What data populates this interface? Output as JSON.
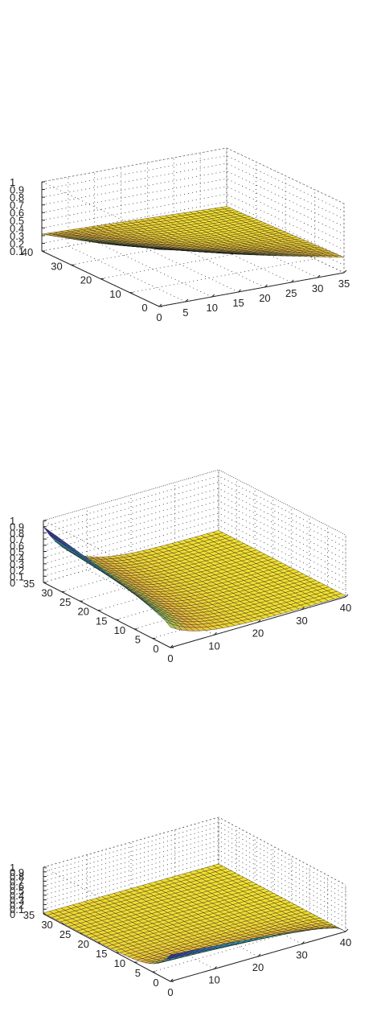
{
  "chart_data": [
    {
      "type": "surface3d",
      "title": "",
      "xlabel": "",
      "ylabel": "",
      "zlabel": "",
      "x_ticks": [
        "0",
        "5",
        "10",
        "15",
        "20",
        "25",
        "30",
        "35"
      ],
      "y_ticks": [
        "0",
        "10",
        "20",
        "30",
        "40"
      ],
      "z_ticks": [
        "0.1",
        "0.2",
        "0.3",
        "0.4",
        "0.5",
        "0.6",
        "0.7",
        "0.8",
        "0.9",
        "1"
      ],
      "xlim": [
        0,
        35
      ],
      "ylim": [
        0,
        40
      ],
      "zlim": [
        0.1,
        1
      ],
      "grid": true,
      "colormap": [
        "#3b2f8f",
        "#2a8fb8",
        "#48b59a",
        "#a7c45a",
        "#e6b43e",
        "#f2e030"
      ],
      "corner_values": {
        "x0_y40": 0.32,
        "x0_y0": 0.79,
        "x35_y0": 0.3,
        "x35_y40": 0.24
      }
    },
    {
      "type": "surface3d",
      "title": "",
      "xlabel": "",
      "ylabel": "",
      "zlabel": "",
      "x_ticks": [
        "0",
        "10",
        "20",
        "30",
        "40"
      ],
      "y_ticks": [
        "0",
        "5",
        "10",
        "15",
        "20",
        "25",
        "30",
        "35"
      ],
      "z_ticks": [
        "0",
        "0.1",
        "0.2",
        "0.3",
        "0.4",
        "0.5",
        "0.6",
        "0.7",
        "0.8",
        "0.9",
        "1"
      ],
      "xlim": [
        0,
        40
      ],
      "ylim": [
        0,
        35
      ],
      "zlim": [
        0,
        1
      ],
      "grid": true,
      "colormap": [
        "#3b2f8f",
        "#2a8fb8",
        "#48b59a",
        "#a7c45a",
        "#e6b43e",
        "#f2e030"
      ],
      "peak_value": 0.88,
      "floor_value": 0.0
    },
    {
      "type": "surface3d",
      "title": "",
      "xlabel": "",
      "ylabel": "",
      "zlabel": "",
      "x_ticks": [
        "0",
        "10",
        "20",
        "30",
        "40"
      ],
      "y_ticks": [
        "0",
        "5",
        "10",
        "15",
        "20",
        "25",
        "30",
        "35"
      ],
      "z_ticks": [
        "0",
        "0.1",
        "0.2",
        "0.3",
        "0.4",
        "0.5",
        "0.6",
        "0.7",
        "0.8",
        "0.9",
        "1"
      ],
      "xlim": [
        0,
        40
      ],
      "ylim": [
        0,
        35
      ],
      "zlim": [
        0,
        1
      ],
      "grid": true,
      "colormap": [
        "#3b2f8f",
        "#2a8fb8",
        "#48b59a",
        "#a7c45a",
        "#e6b43e",
        "#f2e030"
      ],
      "peak_value": 0.55,
      "floor_value": 0.0
    }
  ]
}
